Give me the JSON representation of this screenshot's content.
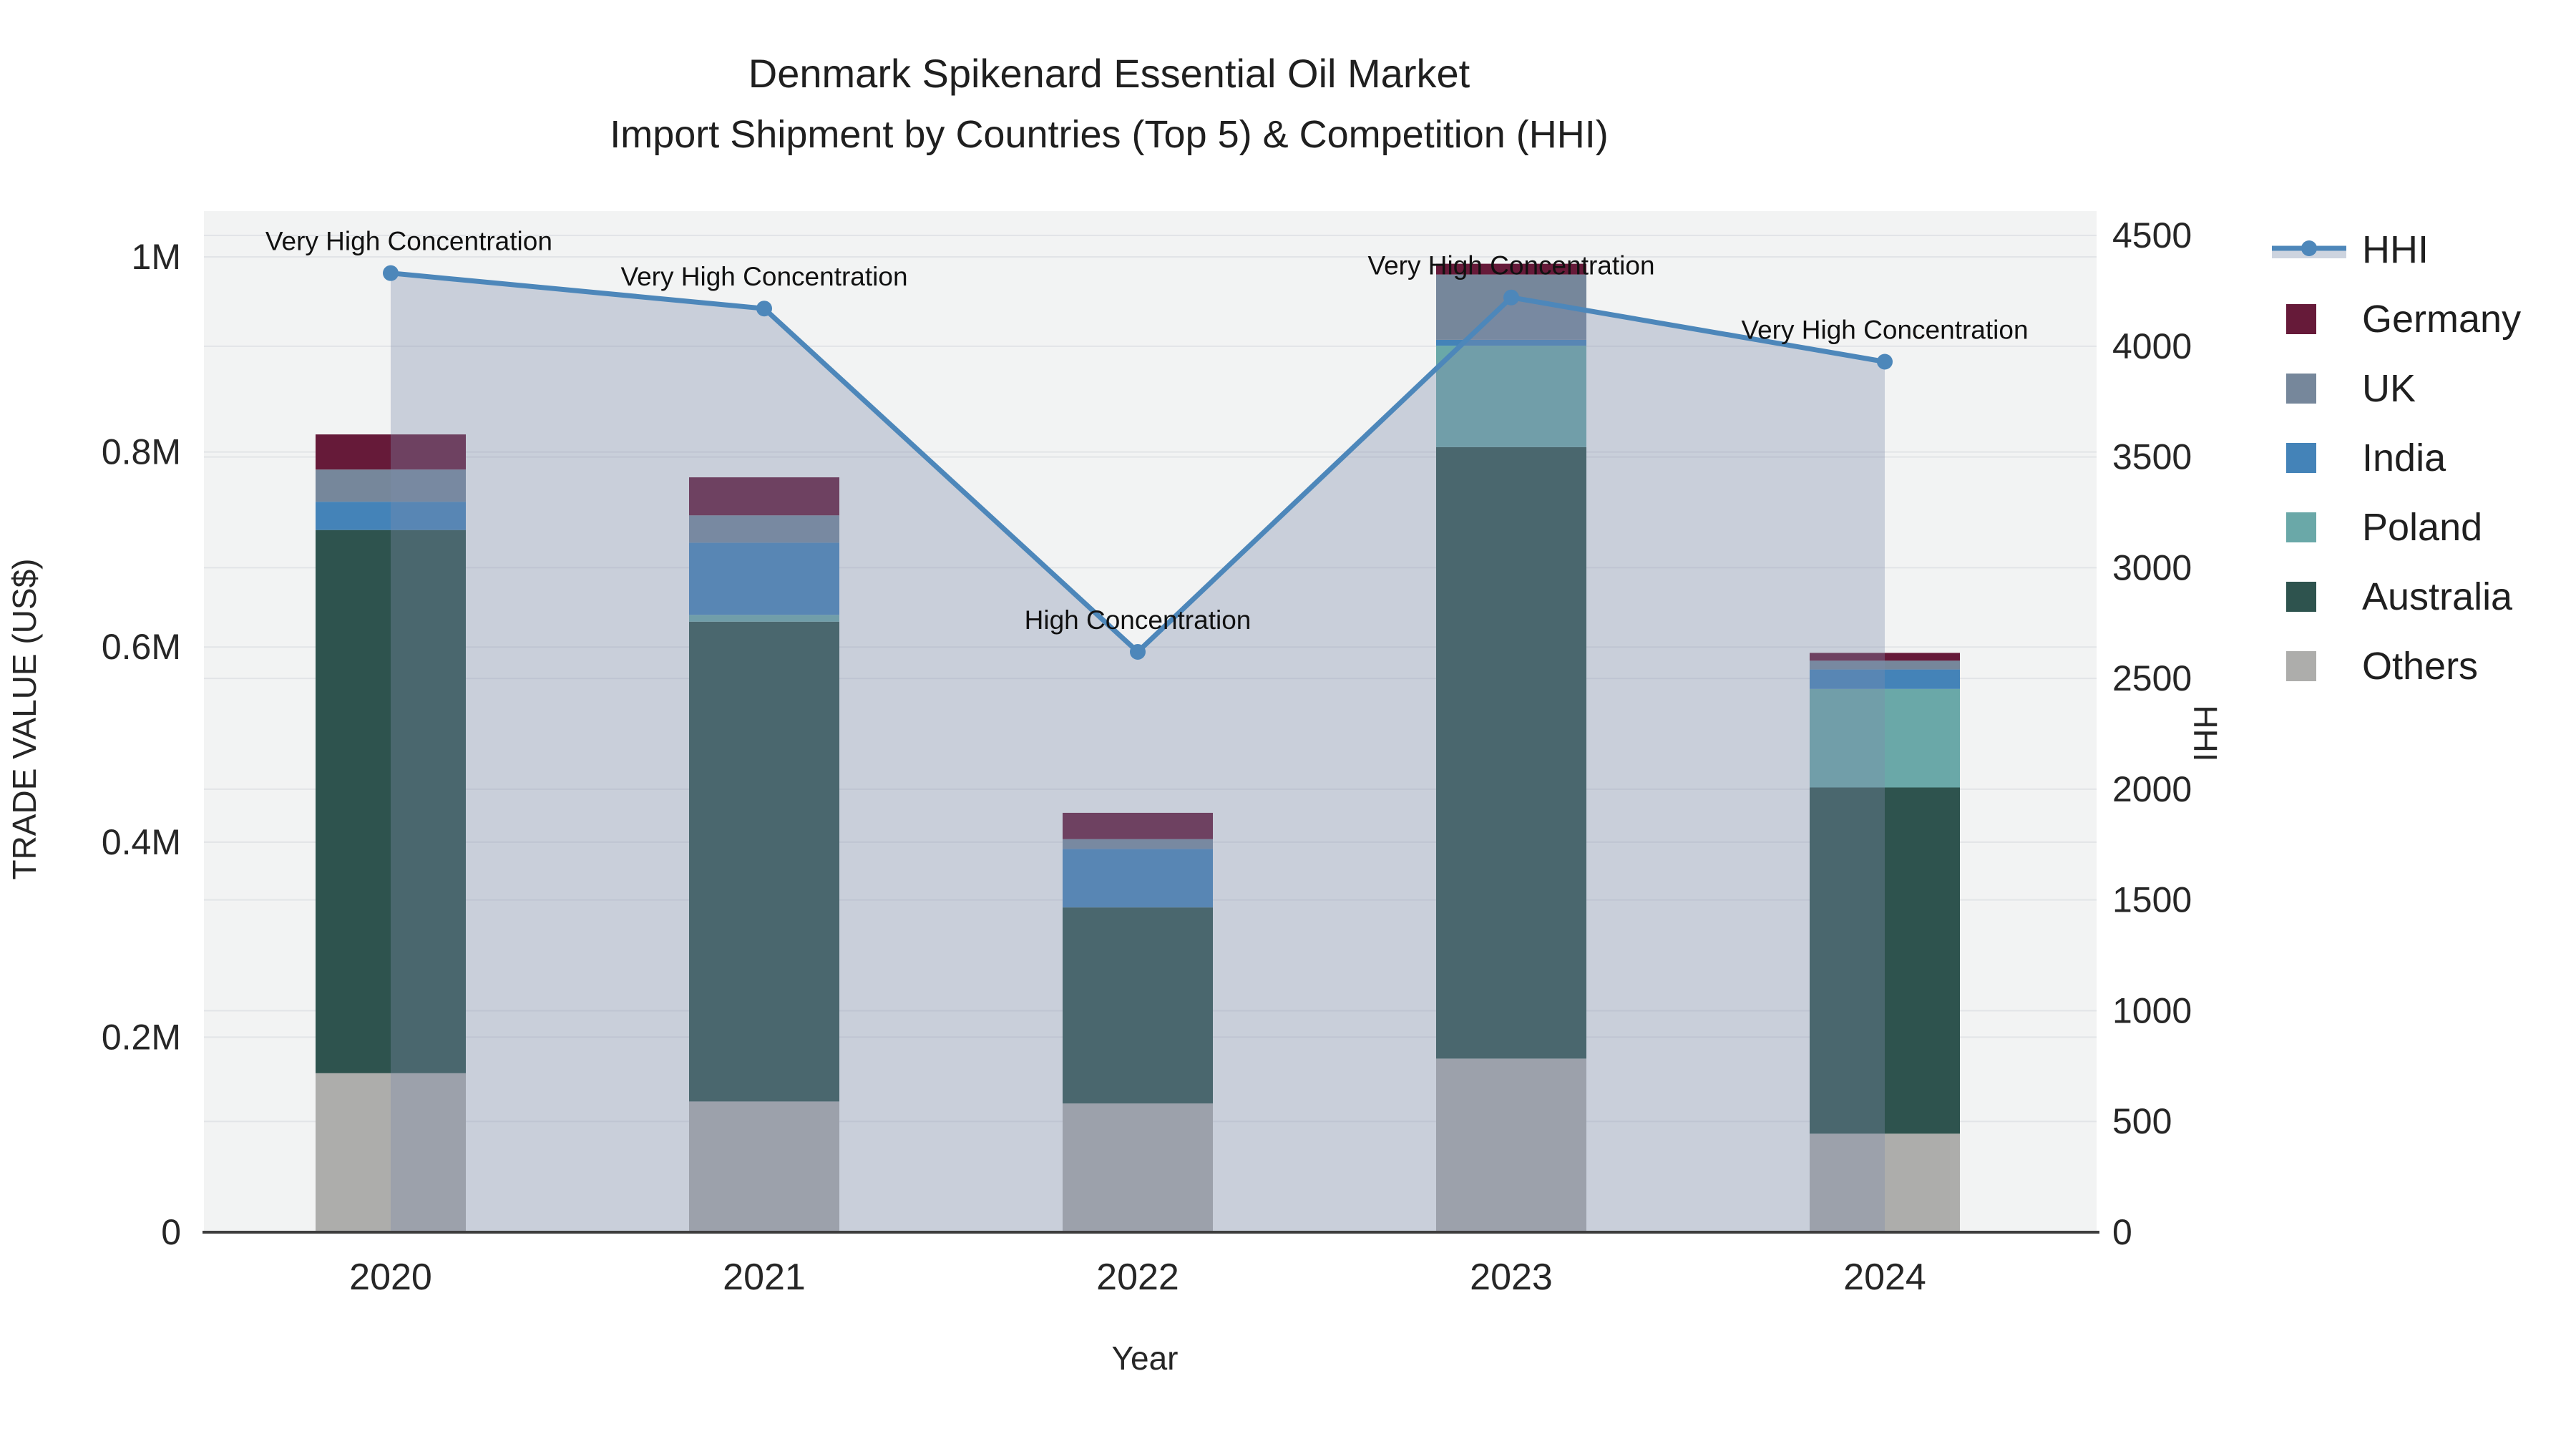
{
  "title": {
    "line1": "Denmark Spikenard Essential Oil Market",
    "line2": "Import Shipment by Countries (Top 5) & Competition (HHI)"
  },
  "axes": {
    "left": {
      "title": "TRADE VALUE (US$)",
      "tick_labels": [
        "0",
        "0.2M",
        "0.4M",
        "0.6M",
        "0.8M",
        "1M"
      ],
      "tick_values": [
        0,
        200000,
        400000,
        600000,
        800000,
        1000000
      ]
    },
    "right": {
      "title": "HHI",
      "tick_labels": [
        "0",
        "500",
        "1000",
        "1500",
        "2000",
        "2500",
        "3000",
        "3500",
        "4000",
        "4500"
      ],
      "tick_values": [
        0,
        500,
        1000,
        1500,
        2000,
        2500,
        3000,
        3500,
        4000,
        4500
      ]
    },
    "x": {
      "title": "Year",
      "tick_labels": [
        "2020",
        "2021",
        "2022",
        "2023",
        "2024"
      ]
    }
  },
  "legend": {
    "items": [
      {
        "label": "HHI",
        "type": "line",
        "color": "#4D87BA"
      },
      {
        "label": "Germany",
        "type": "swatch",
        "color": "#661A39"
      },
      {
        "label": "UK",
        "type": "swatch",
        "color": "#76879B"
      },
      {
        "label": "India",
        "type": "swatch",
        "color": "#4483B8"
      },
      {
        "label": "Poland",
        "type": "swatch",
        "color": "#6AA8A8"
      },
      {
        "label": "Australia",
        "type": "swatch",
        "color": "#2E534E"
      },
      {
        "label": "Others",
        "type": "swatch",
        "color": "#ADADAB"
      }
    ]
  },
  "annotations": [
    {
      "x": "2020",
      "text": "Very High Concentration"
    },
    {
      "x": "2021",
      "text": "Very High Concentration"
    },
    {
      "x": "2022",
      "text": "High Concentration"
    },
    {
      "x": "2023",
      "text": "Very High Concentration"
    },
    {
      "x": "2024",
      "text": "Very High Concentration"
    }
  ],
  "colors": {
    "page_bg": "#FFFFFF",
    "plot_bg": "#F2F3F3",
    "grid": "#E2E4E7",
    "axis_line": "#3D3D3D",
    "text": "#262626",
    "area_fill": "rgba(125,141,172,0.35)",
    "hhi_line": "#4D87BA",
    "legend_band": "#CDD4DF"
  },
  "chart_data": {
    "type": "bar+line",
    "stacked": true,
    "grid": true,
    "legend_position": "right",
    "categories": [
      "2020",
      "2021",
      "2022",
      "2023",
      "2024"
    ],
    "series": [
      {
        "name": "Others",
        "color": "#ADADAB",
        "values": [
          163000,
          134000,
          132000,
          178000,
          101000
        ]
      },
      {
        "name": "Australia",
        "color": "#2E534E",
        "values": [
          557000,
          492000,
          201000,
          627000,
          355000
        ]
      },
      {
        "name": "Poland",
        "color": "#6AA8A8",
        "values": [
          0,
          7000,
          0,
          104000,
          101000
        ]
      },
      {
        "name": "India",
        "color": "#4483B8",
        "values": [
          29000,
          74000,
          60000,
          6000,
          20000
        ]
      },
      {
        "name": "UK",
        "color": "#76879B",
        "values": [
          33000,
          28000,
          10000,
          67000,
          9000
        ]
      },
      {
        "name": "Germany",
        "color": "#661A39",
        "values": [
          36000,
          39000,
          27000,
          11000,
          8000
        ]
      }
    ],
    "totals": [
      818000,
      774000,
      430000,
      993000,
      594000
    ],
    "line": {
      "name": "HHI",
      "color": "#4D87BA",
      "yaxis": "right",
      "values": [
        4330,
        4170,
        2620,
        4220,
        3930
      ]
    },
    "xlabel": "Year",
    "ylabel": "TRADE VALUE (US$)",
    "y2label": "HHI",
    "left_axis_range": [
      0,
      1047000
    ],
    "right_axis_range": [
      0,
      4610
    ]
  }
}
